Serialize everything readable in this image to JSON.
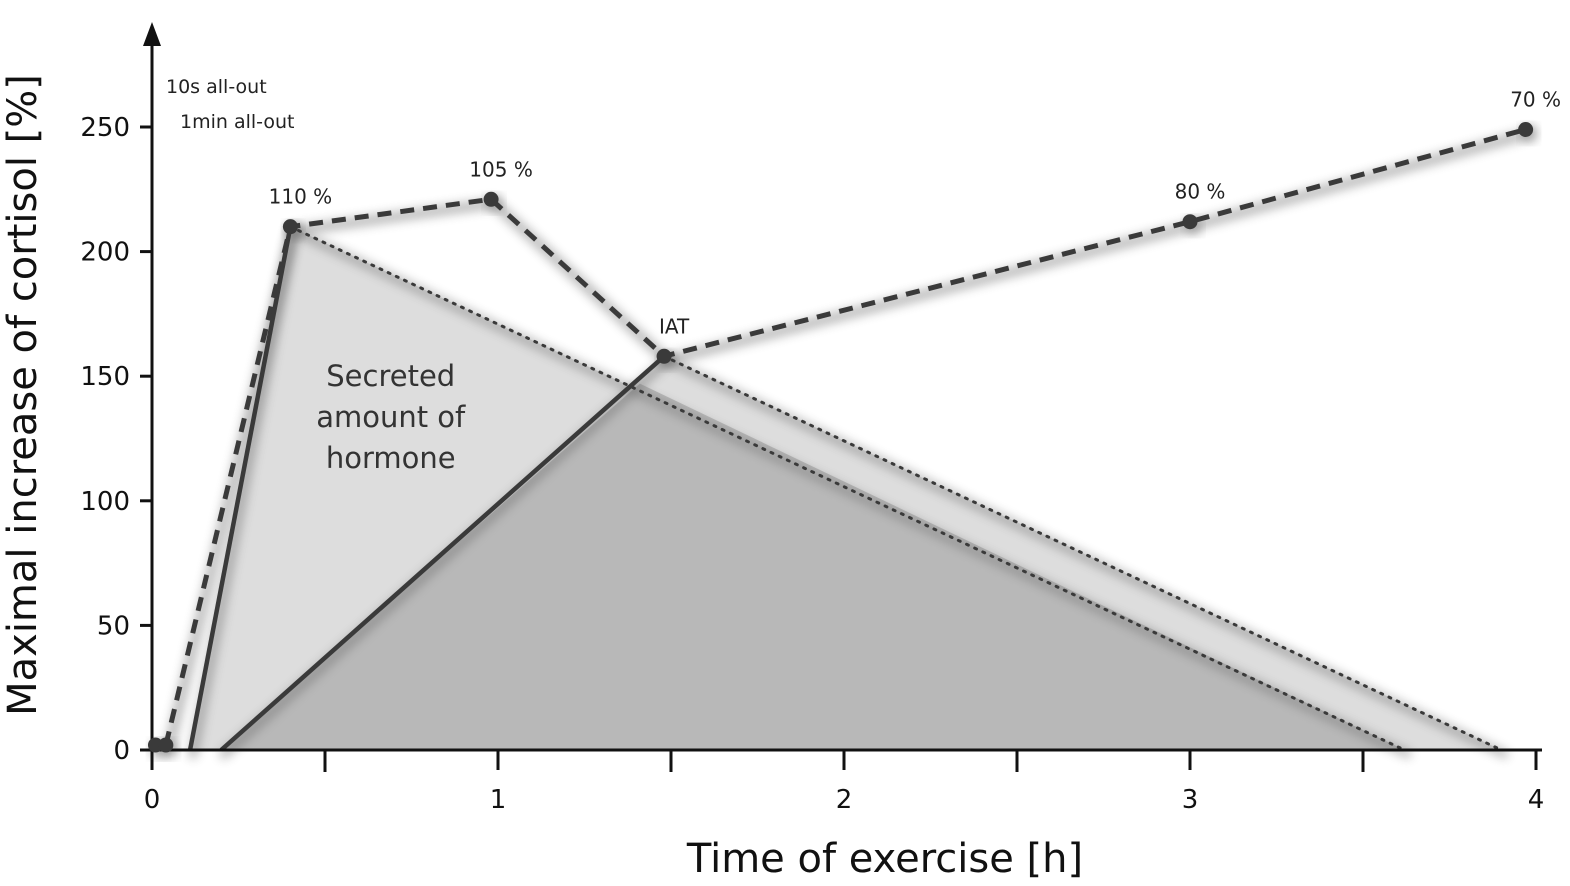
{
  "chart_data": {
    "type": "line",
    "title": "",
    "xlabel": "Time of exercise [h]",
    "ylabel": "Maximal increase of cortisol [%]",
    "xlim": [
      0,
      4
    ],
    "ylim": [
      0,
      250
    ],
    "x_ticks": [
      0,
      1,
      2,
      3,
      4
    ],
    "x_minor_ticks": [
      0.5,
      1.5,
      2.5,
      3.5
    ],
    "y_ticks": [
      0,
      50,
      100,
      150,
      200,
      250
    ],
    "legend_notes": [
      "10s all-out",
      "1min all-out"
    ],
    "points": [
      {
        "x": 0.01,
        "y": 2,
        "label": ""
      },
      {
        "x": 0.04,
        "y": 2,
        "label": ""
      },
      {
        "x": 0.4,
        "y": 210,
        "label": "110 %"
      },
      {
        "x": 0.98,
        "y": 221,
        "label": "105 %"
      },
      {
        "x": 1.48,
        "y": 158,
        "label": "IAT"
      },
      {
        "x": 3.0,
        "y": 212,
        "label": "80 %"
      },
      {
        "x": 3.97,
        "y": 249,
        "label": "70 %"
      }
    ],
    "series": [
      {
        "style": "dashed",
        "x": [
          0.04,
          0.4,
          0.98,
          1.48,
          3.0,
          3.97
        ],
        "y": [
          2,
          210,
          221,
          158,
          212,
          249
        ]
      },
      {
        "style": "solid",
        "x": [
          0.11,
          0.4
        ],
        "y": [
          0,
          210
        ]
      },
      {
        "style": "solid",
        "x": [
          0.2,
          1.48
        ],
        "y": [
          0,
          158
        ]
      },
      {
        "style": "dotted",
        "x": [
          0.4,
          3.62
        ],
        "y": [
          210,
          0
        ]
      },
      {
        "style": "dotted",
        "x": [
          1.48,
          3.9
        ],
        "y": [
          158,
          0
        ]
      }
    ],
    "areas": [
      {
        "shade": "light",
        "x": [
          0.11,
          0.4,
          3.62
        ],
        "y": [
          0,
          210,
          0
        ]
      },
      {
        "shade": "light",
        "x": [
          0.2,
          1.48,
          3.9
        ],
        "y": [
          0,
          158,
          0
        ]
      },
      {
        "shade": "dark",
        "x": [
          0.2,
          1.41,
          3.62
        ],
        "y": [
          0,
          147,
          0
        ]
      }
    ],
    "annotations": [
      {
        "text": [
          "Secreted",
          "amount of",
          "hormone"
        ],
        "x": 0.69,
        "y": 150
      }
    ]
  }
}
